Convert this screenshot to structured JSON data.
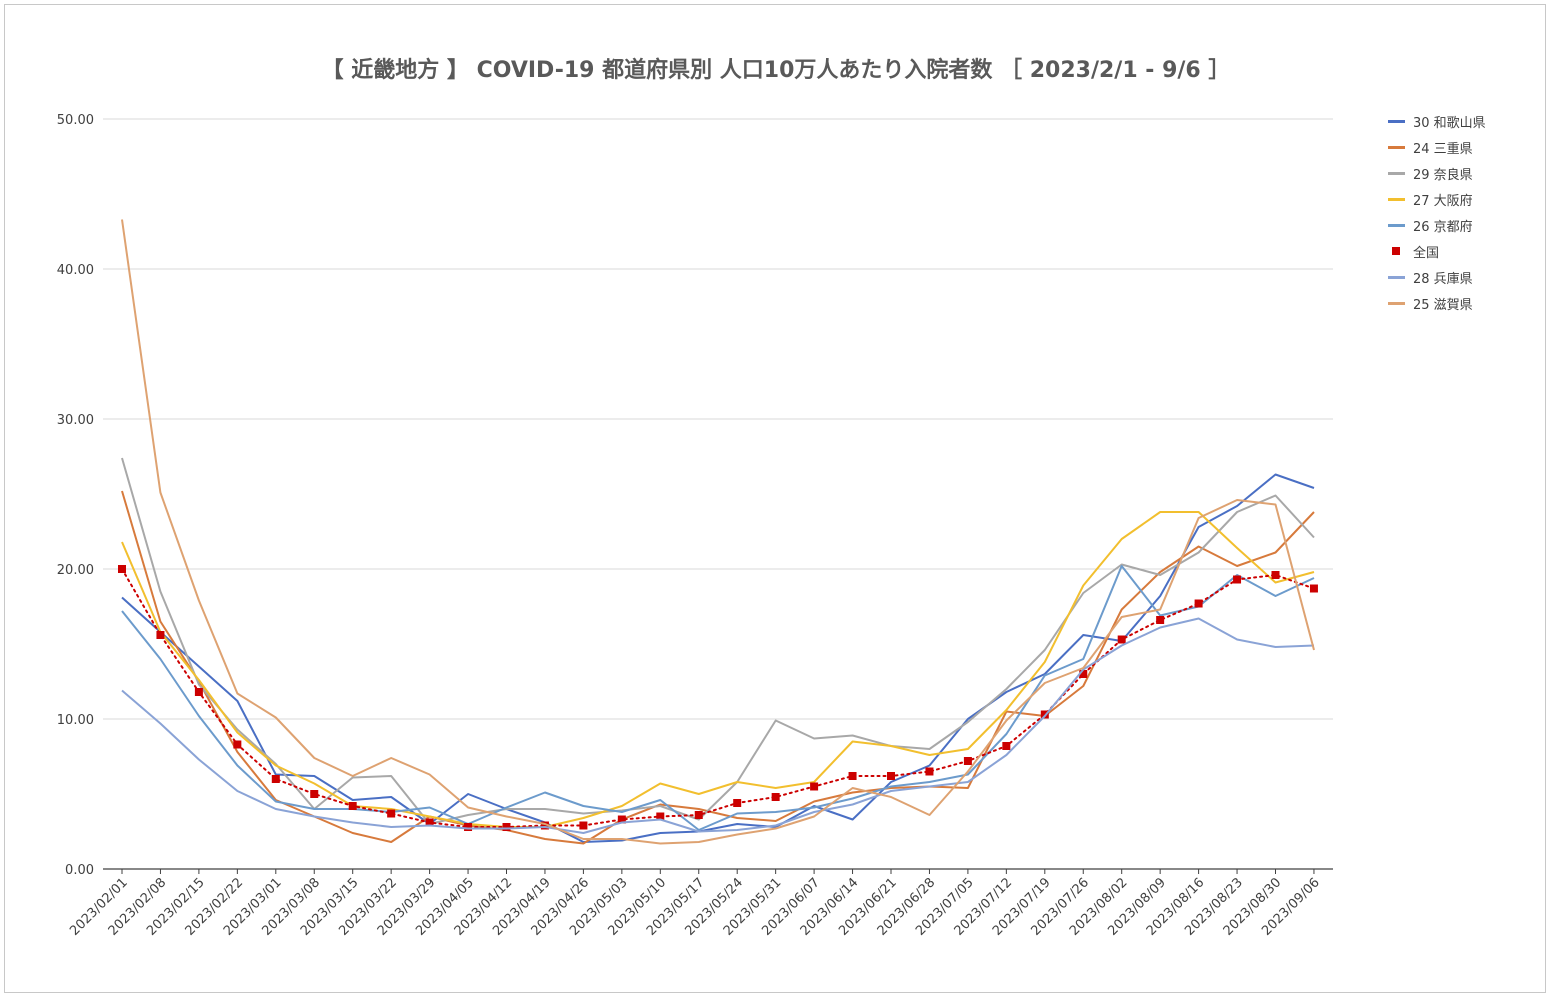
{
  "chart_data": {
    "type": "line",
    "title": "【 近畿地方 】 COVID-19 都道府県別 人口10万人あたり入院者数 ［ 2023/2/1 - 9/6 ］",
    "xlabel": "",
    "ylabel": "",
    "ylim": [
      0,
      50
    ],
    "yticks": [
      "0.00",
      "10.00",
      "20.00",
      "30.00",
      "40.00",
      "50.00"
    ],
    "grid": true,
    "legend_position": "right",
    "categories": [
      "2023/02/01",
      "2023/02/08",
      "2023/02/15",
      "2023/02/22",
      "2023/03/01",
      "2023/03/08",
      "2023/03/15",
      "2023/03/22",
      "2023/03/29",
      "2023/04/05",
      "2023/04/12",
      "2023/04/19",
      "2023/04/26",
      "2023/05/03",
      "2023/05/10",
      "2023/05/17",
      "2023/05/24",
      "2023/05/31",
      "2023/06/07",
      "2023/06/14",
      "2023/06/21",
      "2023/06/28",
      "2023/07/05",
      "2023/07/12",
      "2023/07/19",
      "2023/07/26",
      "2023/08/02",
      "2023/08/09",
      "2023/08/16",
      "2023/08/23",
      "2023/08/30",
      "2023/09/06"
    ],
    "series": [
      {
        "name": "30 和歌山県",
        "color": "#4a6fc4",
        "style": "line",
        "values": [
          18.1,
          15.8,
          13.5,
          11.2,
          6.3,
          6.2,
          4.6,
          4.8,
          3.0,
          5.0,
          4.0,
          3.1,
          1.8,
          1.9,
          2.4,
          2.5,
          3.0,
          2.8,
          4.2,
          3.3,
          5.8,
          6.9,
          10.0,
          11.8,
          13.0,
          15.6,
          15.2,
          18.2,
          22.8,
          24.2,
          26.3,
          25.4
        ]
      },
      {
        "name": "24 三重県",
        "color": "#d77a3c",
        "style": "line",
        "values": [
          25.2,
          16.5,
          12.5,
          7.8,
          4.6,
          3.5,
          2.4,
          1.8,
          3.5,
          2.9,
          2.6,
          2.0,
          1.7,
          3.3,
          4.3,
          4.0,
          3.4,
          3.2,
          4.5,
          5.1,
          5.4,
          5.5,
          5.4,
          10.5,
          10.2,
          12.2,
          17.3,
          19.8,
          21.5,
          20.2,
          21.1,
          23.8
        ]
      },
      {
        "name": "29 奈良県",
        "color": "#a8a8a8",
        "style": "line",
        "values": [
          27.4,
          18.5,
          12.3,
          9.3,
          7.0,
          4.0,
          6.1,
          6.2,
          3.0,
          3.6,
          4.0,
          4.0,
          3.7,
          3.9,
          4.2,
          3.3,
          5.8,
          9.9,
          8.7,
          8.9,
          8.2,
          8.0,
          9.8,
          12.0,
          14.6,
          18.4,
          20.3,
          19.6,
          21.1,
          23.8,
          24.9,
          22.1
        ]
      },
      {
        "name": "27 大阪府",
        "color": "#f2bf2e",
        "style": "line",
        "values": [
          21.8,
          15.8,
          12.6,
          9.1,
          6.9,
          5.7,
          4.2,
          4.0,
          3.5,
          3.0,
          2.8,
          2.8,
          3.4,
          4.2,
          5.7,
          5.0,
          5.8,
          5.4,
          5.8,
          8.5,
          8.2,
          7.6,
          8.0,
          10.6,
          13.8,
          18.9,
          22.0,
          23.8,
          23.8,
          21.4,
          19.1,
          19.8
        ]
      },
      {
        "name": "26 京都府",
        "color": "#6c9bcc",
        "style": "line",
        "values": [
          17.2,
          14.0,
          10.2,
          6.9,
          4.5,
          4.0,
          4.0,
          3.8,
          4.1,
          3.0,
          4.1,
          5.1,
          4.2,
          3.8,
          4.6,
          2.6,
          3.7,
          3.8,
          4.1,
          4.7,
          5.5,
          5.8,
          6.3,
          9.0,
          12.9,
          14.0,
          20.2,
          16.9,
          17.5,
          19.6,
          18.2,
          19.4
        ]
      },
      {
        "name": "全国",
        "color": "#cc0000",
        "style": "marker",
        "values": [
          20.0,
          15.6,
          11.8,
          8.3,
          6.0,
          5.0,
          4.2,
          3.7,
          3.1,
          2.8,
          2.8,
          2.9,
          2.9,
          3.3,
          3.5,
          3.6,
          4.4,
          4.8,
          5.5,
          6.2,
          6.2,
          6.5,
          7.2,
          8.2,
          10.3,
          13.0,
          15.3,
          16.6,
          17.7,
          19.3,
          19.6,
          18.7
        ]
      },
      {
        "name": "28 兵庫県",
        "color": "#8aa3d6",
        "style": "line",
        "values": [
          11.9,
          9.7,
          7.3,
          5.2,
          4.0,
          3.5,
          3.1,
          2.8,
          2.9,
          2.7,
          2.7,
          2.8,
          2.4,
          3.1,
          3.3,
          2.5,
          2.6,
          2.9,
          3.8,
          4.3,
          5.2,
          5.5,
          5.8,
          7.6,
          10.2,
          13.3,
          14.9,
          16.1,
          16.7,
          15.3,
          14.8,
          14.9
        ]
      },
      {
        "name": "25 滋賀県",
        "color": "#dea271",
        "style": "line",
        "values": [
          43.3,
          25.1,
          17.9,
          11.7,
          10.1,
          7.4,
          6.2,
          7.4,
          6.3,
          4.1,
          3.5,
          3.0,
          2.0,
          2.0,
          1.7,
          1.8,
          2.3,
          2.7,
          3.5,
          5.4,
          4.8,
          3.6,
          6.5,
          9.9,
          12.4,
          13.4,
          16.8,
          17.3,
          23.4,
          24.6,
          24.3,
          14.6
        ]
      }
    ]
  }
}
